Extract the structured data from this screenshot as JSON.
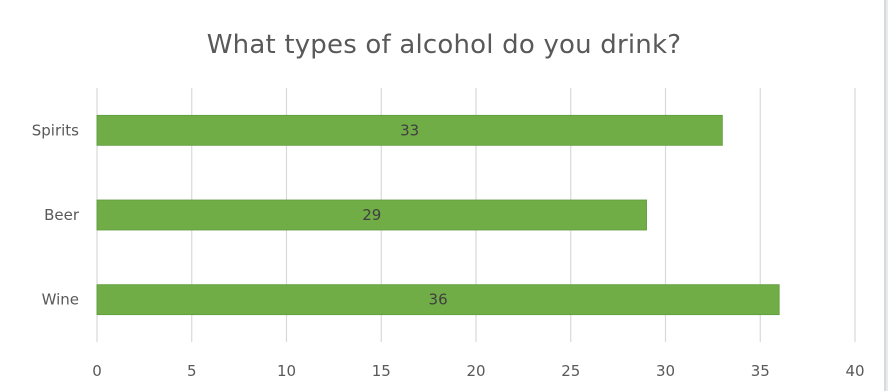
{
  "chart_data": {
    "type": "bar",
    "orientation": "horizontal",
    "title": "What types of alcohol do you drink?",
    "categories": [
      "Spirits",
      "Beer",
      "Wine"
    ],
    "values": [
      33,
      29,
      36
    ],
    "data_labels": [
      "33",
      "29",
      "36"
    ],
    "xlim": [
      0,
      40
    ],
    "x_ticks": [
      0,
      5,
      10,
      15,
      20,
      25,
      30,
      35,
      40
    ],
    "grid": true,
    "legend": "none",
    "bar_color": "#70ad47",
    "bar_edge_color": "#5e9a3a",
    "grid_color": "#d9d9d9",
    "text_color": "#595959"
  }
}
